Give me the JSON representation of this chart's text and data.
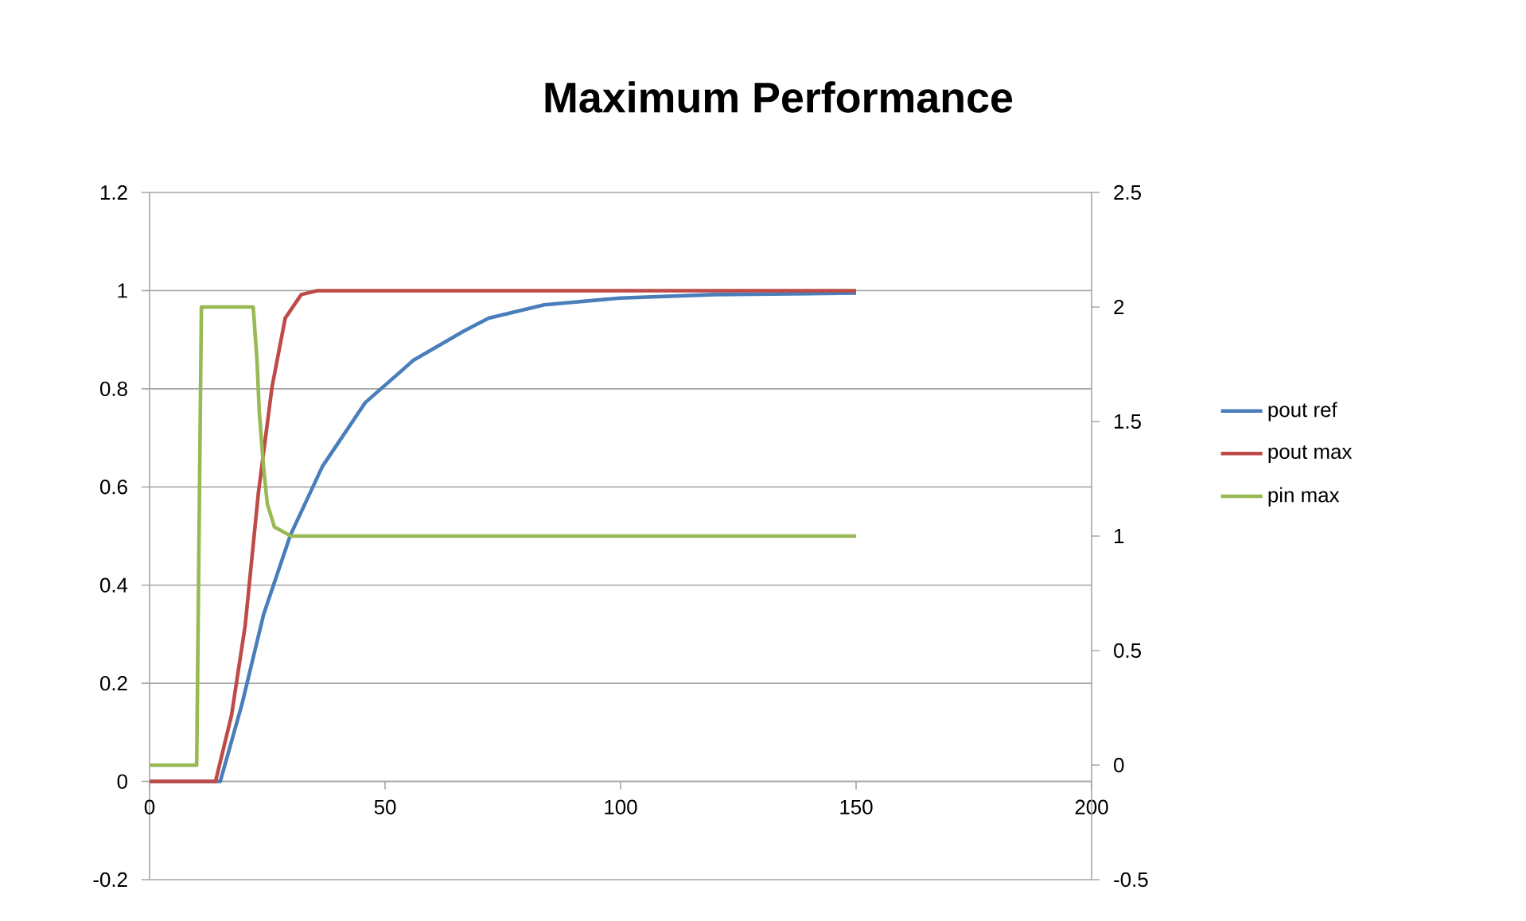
{
  "chart_data": {
    "type": "line",
    "title": "Maximum Performance",
    "xlim": [
      0,
      200
    ],
    "xticks": [
      0,
      50,
      100,
      150,
      200
    ],
    "ylim": [
      -0.2,
      1.2
    ],
    "yticks": [
      -0.2,
      0,
      0.2,
      0.4,
      0.6,
      0.8,
      1,
      1.2
    ],
    "y2lim": [
      -0.5,
      2.5
    ],
    "y2ticks": [
      -0.5,
      0,
      0.5,
      1,
      1.5,
      2,
      2.5
    ],
    "grid": "y",
    "legend": "right",
    "marker": "none",
    "line_style": "solid",
    "series": [
      {
        "name": "pout ref",
        "color": "#4a7ebb",
        "x": [
          0,
          15,
          19.6,
          24.2,
          29.9,
          36.7,
          45.8,
          56,
          66.8,
          72,
          83.8,
          100,
          120,
          150
        ],
        "values": [
          0,
          0,
          0.157,
          0.34,
          0.502,
          0.642,
          0.772,
          0.858,
          0.918,
          0.944,
          0.971,
          0.985,
          0.992,
          0.995
        ]
      },
      {
        "name": "pout max",
        "color": "#be4b48",
        "x": [
          0,
          14,
          17.4,
          20.3,
          23.1,
          26,
          28.8,
          32.2,
          35.6,
          150
        ],
        "values": [
          0,
          0,
          0.135,
          0.318,
          0.588,
          0.804,
          0.944,
          0.992,
          1,
          1
        ]
      },
      {
        "name": "pin max",
        "color": "#98b954",
        "axis": "y2",
        "x": [
          0,
          10,
          11,
          22,
          22.8,
          23.3,
          24.2,
          25,
          26.5,
          30,
          150
        ],
        "values": [
          0,
          0,
          2,
          2,
          1.77,
          1.54,
          1.3,
          1.14,
          1.04,
          1,
          1
        ]
      }
    ]
  }
}
